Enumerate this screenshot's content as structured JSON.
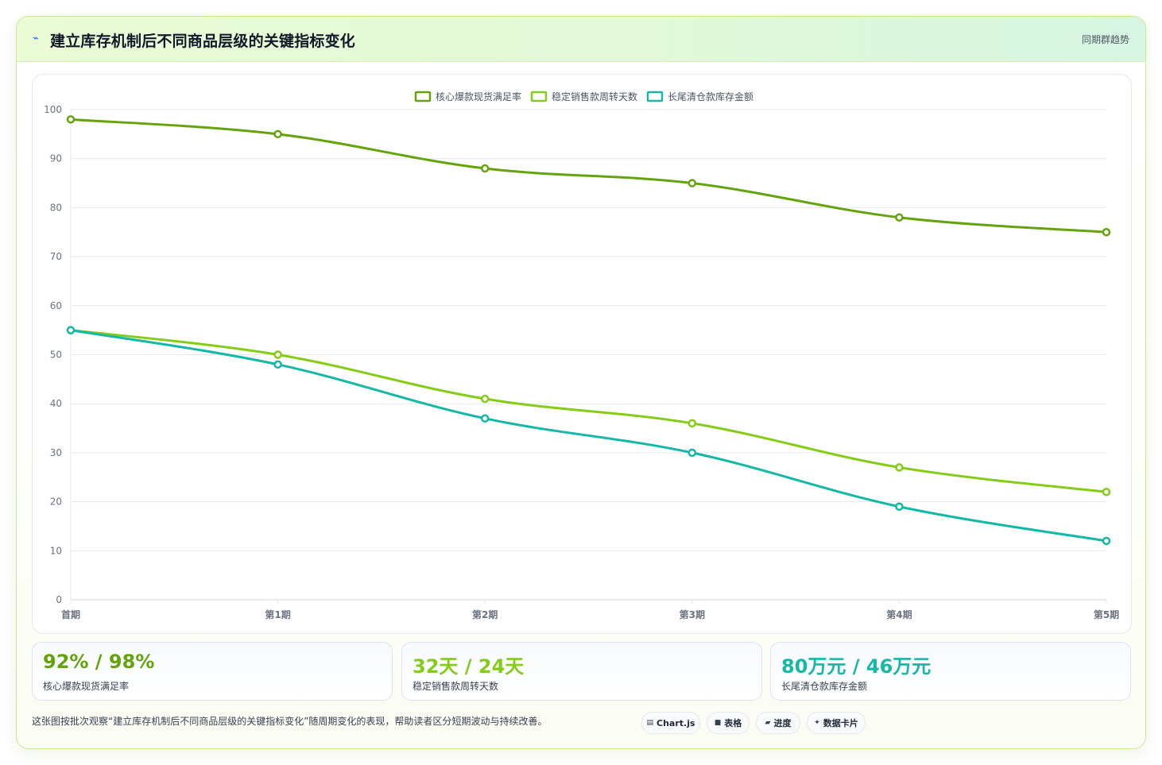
{
  "header": {
    "icon": "line-chart-icon",
    "title": "建立库存机制后不同商品层级的关键指标变化",
    "badge": "同期群趋势"
  },
  "chart_data": {
    "type": "line",
    "categories": [
      "首期",
      "第1期",
      "第2期",
      "第3期",
      "第4期",
      "第5期"
    ],
    "ylim": [
      0,
      100
    ],
    "yticks": [
      0,
      10,
      20,
      30,
      40,
      50,
      60,
      70,
      80,
      90,
      100
    ],
    "grid": true,
    "legend_position": "top-center",
    "series": [
      {
        "name": "核心爆款现货满足率",
        "color": "#65a30d",
        "values": [
          98,
          95,
          88,
          85,
          78,
          75
        ]
      },
      {
        "name": "稳定销售款周转天数",
        "color": "#84cc16",
        "values": [
          55,
          50,
          41,
          36,
          27,
          22
        ]
      },
      {
        "name": "长尾清仓款库存金额",
        "color": "#14b8a6",
        "values": [
          55,
          48,
          37,
          30,
          19,
          12
        ]
      }
    ]
  },
  "stats": [
    {
      "value": "92% / 98%",
      "label": "核心爆款现货满足率",
      "color": "#65a30d"
    },
    {
      "value": "32天 / 24天",
      "label": "稳定销售款周转天数",
      "color": "#84cc16"
    },
    {
      "value": "80万元 / 46万元",
      "label": "长尾清仓款库存金额",
      "color": "#14b8a6"
    }
  ],
  "footnote": "这张图按批次观察“建立库存机制后不同商品层级的关键指标变化”随周期变化的表现，帮助读者区分短期波动与持续改善。",
  "chips": [
    {
      "icon": "chart-icon",
      "label": "Chart.js"
    },
    {
      "icon": "table-icon",
      "label": "表格"
    },
    {
      "icon": "progress-icon",
      "label": "进度"
    },
    {
      "icon": "sparkle-icon",
      "label": "数据卡片"
    }
  ]
}
